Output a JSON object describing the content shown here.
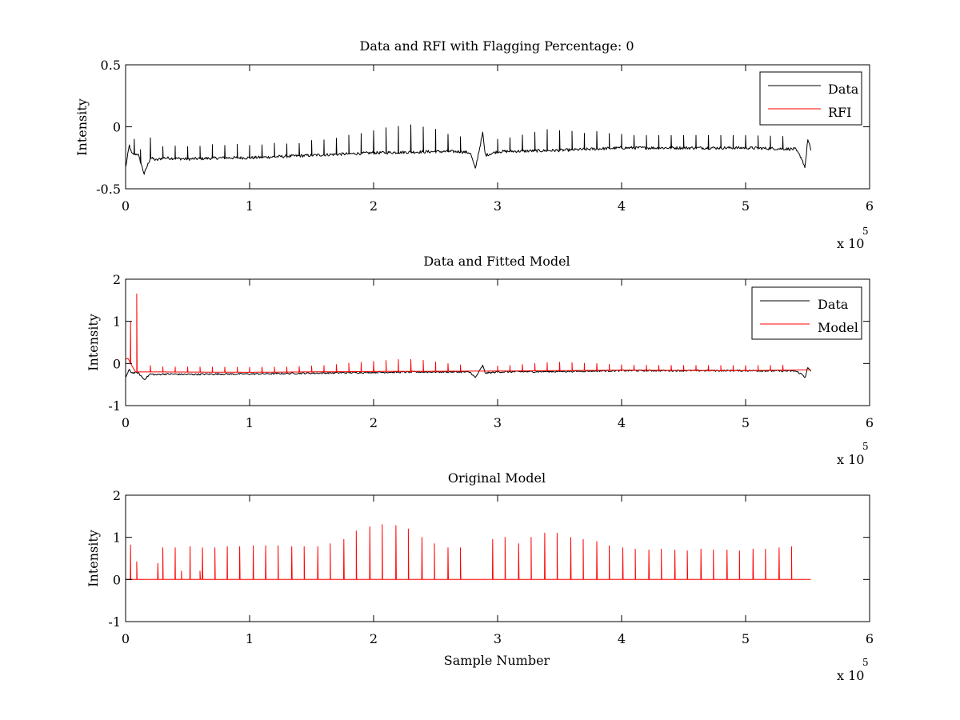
{
  "figure": {
    "background": "#ffffff"
  },
  "chart_data": [
    {
      "type": "line",
      "title": "Data and RFI with Flagging Percentage: 0",
      "xlabel": "",
      "ylabel": "Intensity",
      "xlim": [
        0,
        600000
      ],
      "ylim": [
        -0.5,
        0.5
      ],
      "xticks": [
        "0",
        "1",
        "2",
        "3",
        "4",
        "5",
        "6"
      ],
      "yticks": [
        "-0.5",
        "0",
        "0.5"
      ],
      "x_exponent": {
        "base": "x 10",
        "power": "5"
      },
      "legend": {
        "position": "top-right",
        "entries": [
          {
            "label": "Data",
            "color": "#000000"
          },
          {
            "label": "RFI",
            "color": "#ff0000"
          }
        ]
      },
      "series": [
        {
          "name": "Data",
          "color": "#000000",
          "noise": 0.012,
          "x": [
            0,
            3000,
            5000,
            10000,
            15000,
            20000,
            25000,
            30000,
            50000,
            80000,
            100000,
            150000,
            200000,
            250000,
            270000,
            278000,
            282000,
            288000,
            290000,
            300000,
            350000,
            400000,
            450000,
            500000,
            540000,
            545000,
            548000,
            550000,
            553000
          ],
          "y": [
            -0.33,
            -0.15,
            -0.22,
            -0.22,
            -0.38,
            -0.25,
            -0.27,
            -0.25,
            -0.26,
            -0.25,
            -0.25,
            -0.23,
            -0.21,
            -0.2,
            -0.2,
            -0.21,
            -0.34,
            -0.05,
            -0.23,
            -0.2,
            -0.19,
            -0.17,
            -0.17,
            -0.17,
            -0.18,
            -0.25,
            -0.33,
            -0.1,
            -0.2
          ],
          "spikes": {
            "x": [
              7000,
              12000,
              20000,
              30000,
              40000,
              50000,
              60000,
              70000,
              80000,
              90000,
              100000,
              110000,
              120000,
              130000,
              140000,
              150000,
              160000,
              170000,
              180000,
              190000,
              200000,
              210000,
              220000,
              230000,
              240000,
              250000,
              260000,
              270000,
              300000,
              310000,
              320000,
              330000,
              340000,
              350000,
              360000,
              370000,
              380000,
              390000,
              400000,
              410000,
              420000,
              430000,
              440000,
              450000,
              460000,
              470000,
              480000,
              490000,
              500000,
              510000,
              520000,
              530000
            ],
            "height": [
              0.12,
              0.1,
              0.16,
              0.09,
              0.1,
              0.1,
              0.1,
              0.11,
              0.1,
              0.11,
              0.1,
              0.1,
              0.11,
              0.1,
              0.1,
              0.12,
              0.12,
              0.13,
              0.15,
              0.16,
              0.18,
              0.2,
              0.21,
              0.22,
              0.2,
              0.18,
              0.14,
              0.12,
              0.1,
              0.11,
              0.13,
              0.15,
              0.17,
              0.16,
              0.15,
              0.13,
              0.14,
              0.12,
              0.11,
              0.1,
              0.1,
              0.1,
              0.1,
              0.1,
              0.1,
              0.1,
              0.1,
              0.1,
              0.1,
              0.1,
              0.1,
              0.1
            ]
          }
        }
      ]
    },
    {
      "type": "line",
      "title": "Data and Fitted Model",
      "xlabel": "",
      "ylabel": "Intensity",
      "xlim": [
        0,
        600000
      ],
      "ylim": [
        -1,
        2
      ],
      "xticks": [
        "0",
        "1",
        "2",
        "3",
        "4",
        "5",
        "6"
      ],
      "yticks": [
        "-1",
        "0",
        "1",
        "2"
      ],
      "x_exponent": {
        "base": "x 10",
        "power": "5"
      },
      "legend": {
        "position": "top-right",
        "entries": [
          {
            "label": "Data",
            "color": "#000000"
          },
          {
            "label": "Model",
            "color": "#ff0000"
          }
        ]
      },
      "series": [
        {
          "name": "Data",
          "color": "#000000",
          "noise": 0.02,
          "x": [
            0,
            3000,
            5000,
            10000,
            15000,
            20000,
            25000,
            30000,
            50000,
            80000,
            100000,
            150000,
            200000,
            250000,
            270000,
            278000,
            282000,
            288000,
            290000,
            300000,
            350000,
            400000,
            450000,
            500000,
            540000,
            545000,
            548000,
            550000,
            553000
          ],
          "y": [
            -0.33,
            -0.15,
            -0.22,
            -0.22,
            -0.38,
            -0.25,
            -0.27,
            -0.25,
            -0.26,
            -0.25,
            -0.25,
            -0.23,
            -0.21,
            -0.2,
            -0.2,
            -0.21,
            -0.34,
            -0.05,
            -0.23,
            -0.2,
            -0.19,
            -0.17,
            -0.17,
            -0.17,
            -0.18,
            -0.25,
            -0.33,
            -0.1,
            -0.2
          ]
        },
        {
          "name": "Model",
          "color": "#ff0000",
          "noise": 0,
          "x": [
            0,
            2000,
            4000,
            6000,
            8000,
            10000,
            20000,
            100000,
            200000,
            300000,
            400000,
            500000,
            553000
          ],
          "y": [
            0.1,
            0.12,
            0.0,
            -0.1,
            -0.2,
            -0.2,
            -0.2,
            -0.21,
            -0.19,
            -0.18,
            -0.16,
            -0.17,
            -0.15
          ],
          "spikes": {
            "x": [
              4000,
              9000,
              20000,
              30000,
              40000,
              50000,
              60000,
              70000,
              80000,
              90000,
              100000,
              110000,
              120000,
              130000,
              140000,
              150000,
              160000,
              170000,
              180000,
              190000,
              200000,
              210000,
              220000,
              230000,
              240000,
              250000,
              260000,
              270000,
              300000,
              310000,
              320000,
              330000,
              340000,
              350000,
              360000,
              370000,
              380000,
              390000,
              400000,
              410000,
              420000,
              430000,
              440000,
              450000,
              460000,
              470000,
              480000,
              490000,
              500000,
              510000,
              520000,
              530000
            ],
            "height": [
              1.0,
              1.85,
              0.15,
              0.12,
              0.12,
              0.12,
              0.12,
              0.12,
              0.12,
              0.12,
              0.12,
              0.12,
              0.12,
              0.12,
              0.13,
              0.14,
              0.15,
              0.17,
              0.2,
              0.22,
              0.24,
              0.26,
              0.28,
              0.28,
              0.26,
              0.22,
              0.18,
              0.15,
              0.12,
              0.13,
              0.15,
              0.17,
              0.19,
              0.2,
              0.19,
              0.17,
              0.16,
              0.14,
              0.13,
              0.12,
              0.12,
              0.12,
              0.12,
              0.12,
              0.12,
              0.12,
              0.12,
              0.12,
              0.12,
              0.12,
              0.12,
              0.12
            ]
          }
        }
      ]
    },
    {
      "type": "line",
      "title": "Original Model",
      "xlabel": "Sample Number",
      "ylabel": "Intensity",
      "xlim": [
        0,
        600000
      ],
      "ylim": [
        -1,
        2
      ],
      "xticks": [
        "0",
        "1",
        "2",
        "3",
        "4",
        "5",
        "6"
      ],
      "yticks": [
        "-1",
        "0",
        "1",
        "2"
      ],
      "x_exponent": {
        "base": "x 10",
        "power": "5"
      },
      "legend": null,
      "series": [
        {
          "name": "",
          "color": "#ff0000",
          "noise": 0,
          "x": [
            0,
            553000
          ],
          "y": [
            0,
            0
          ],
          "spikes": {
            "x": [
              4000,
              9000,
              26000,
              30000,
              40000,
              45000,
              52000,
              60000,
              62000,
              72000,
              82000,
              92000,
              103000,
              113000,
              123000,
              134000,
              144000,
              155000,
              165000,
              176000,
              186000,
              197000,
              207000,
              218000,
              228000,
              239000,
              249000,
              260000,
              270000,
              296000,
              306000,
              317000,
              327000,
              338000,
              348000,
              359000,
              369000,
              380000,
              390000,
              401000,
              411000,
              422000,
              432000,
              443000,
              453000,
              464000,
              474000,
              485000,
              495000,
              506000,
              516000,
              527000,
              537000
            ],
            "height": [
              0.82,
              0.42,
              0.38,
              0.75,
              0.75,
              0.2,
              0.78,
              0.2,
              0.75,
              0.75,
              0.78,
              0.78,
              0.8,
              0.8,
              0.8,
              0.78,
              0.78,
              0.78,
              0.85,
              0.95,
              1.15,
              1.25,
              1.3,
              1.28,
              1.2,
              1.0,
              0.85,
              0.75,
              0.75,
              0.95,
              1.0,
              0.85,
              1.0,
              1.1,
              1.1,
              1.0,
              0.95,
              0.9,
              0.8,
              0.75,
              0.72,
              0.7,
              0.72,
              0.7,
              0.68,
              0.72,
              0.7,
              0.7,
              0.68,
              0.72,
              0.72,
              0.75,
              0.78
            ]
          }
        }
      ]
    }
  ]
}
